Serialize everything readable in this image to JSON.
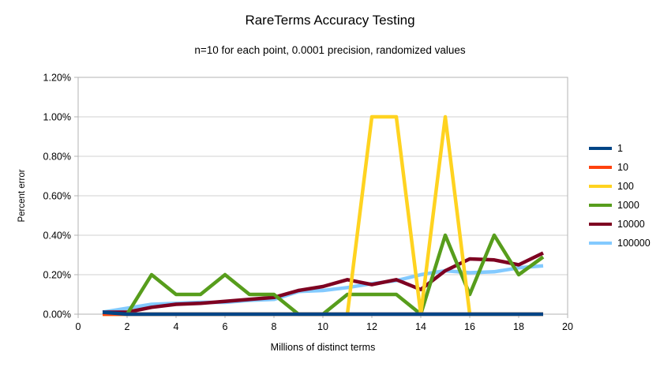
{
  "chart_data": {
    "type": "line",
    "title": "RareTerms Accuracy Testing",
    "subtitle": "n=10 for each point, 0.0001 precision, randomized values",
    "xlabel": "Millions of distinct terms",
    "ylabel": "Percent error",
    "xlim": [
      0,
      20
    ],
    "ylim_percent": [
      0,
      1.2
    ],
    "grid": "horizontal-only",
    "legend_position": "right",
    "x_ticks": {
      "values": [
        0,
        2,
        4,
        6,
        8,
        10,
        12,
        14,
        16,
        18,
        20
      ],
      "labels": [
        "0",
        "2",
        "4",
        "6",
        "8",
        "10",
        "12",
        "14",
        "16",
        "18",
        "20"
      ]
    },
    "y_ticks": {
      "values": [
        0,
        0.2,
        0.4,
        0.6,
        0.8,
        1.0,
        1.2
      ],
      "labels": [
        "0.00%",
        "0.20%",
        "0.40%",
        "0.60%",
        "0.80%",
        "1.00%",
        "1.20%"
      ]
    },
    "x": [
      1,
      2,
      3,
      4,
      5,
      6,
      7,
      8,
      9,
      10,
      11,
      12,
      13,
      14,
      15,
      16,
      17,
      18,
      19
    ],
    "series": [
      {
        "name": "1",
        "color": "#004586",
        "values": [
          0.01,
          0,
          0,
          0,
          0,
          0,
          0,
          0,
          0,
          0,
          0,
          0,
          0,
          0,
          0,
          0,
          0,
          0,
          0
        ]
      },
      {
        "name": "10",
        "color": "#FF420E",
        "values": [
          0,
          0,
          0,
          0,
          0,
          0,
          0,
          0,
          0,
          0,
          0,
          0,
          0,
          0,
          0,
          0,
          0,
          0,
          0
        ]
      },
      {
        "name": "100",
        "color": "#FFD320",
        "values": [
          0,
          0,
          0,
          0,
          0,
          0,
          0,
          0,
          0,
          0,
          0,
          1.0,
          1.0,
          0,
          1.0,
          0,
          0,
          0,
          0
        ]
      },
      {
        "name": "1000",
        "color": "#579D1C",
        "values": [
          0,
          0,
          0.2,
          0.1,
          0.1,
          0.2,
          0.1,
          0.1,
          0,
          0,
          0.1,
          0.1,
          0.1,
          0,
          0.4,
          0.1,
          0.4,
          0.2,
          0.29
        ]
      },
      {
        "name": "10000",
        "color": "#7E0021",
        "values": [
          0.01,
          0.01,
          0.035,
          0.05,
          0.055,
          0.065,
          0.075,
          0.085,
          0.12,
          0.14,
          0.175,
          0.15,
          0.175,
          0.125,
          0.22,
          0.28,
          0.275,
          0.25,
          0.31
        ]
      },
      {
        "name": "100000",
        "color": "#83CAFF",
        "values": [
          0.01,
          0.03,
          0.05,
          0.055,
          0.06,
          0.06,
          0.07,
          0.075,
          0.115,
          0.12,
          0.135,
          0.155,
          0.17,
          0.2,
          0.22,
          0.21,
          0.215,
          0.235,
          0.245
        ]
      }
    ],
    "colors": {
      "text": "#000000",
      "gridline": "#d2d2d2",
      "plot_border": "#b3b3b3",
      "background": "#ffffff"
    }
  }
}
